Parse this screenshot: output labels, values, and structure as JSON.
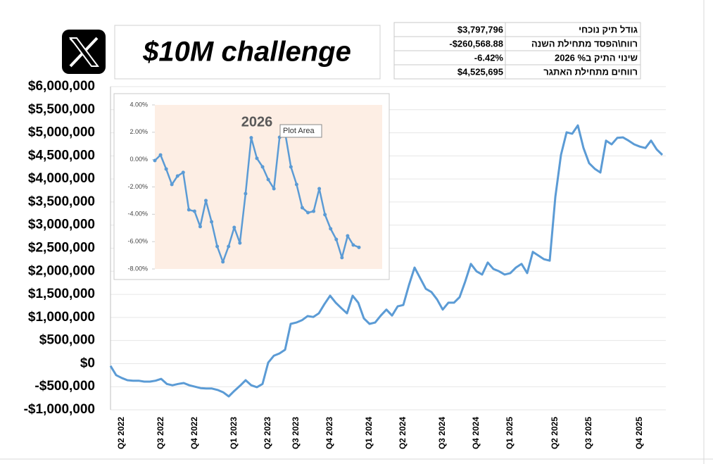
{
  "header": {
    "title": "$10M challenge"
  },
  "table": {
    "rows": [
      [
        "$3,797,796",
        "גודל תיק נוכחי"
      ],
      [
        "-$260,568.88",
        "רווח\\הפסד מתחילת השנה"
      ],
      [
        "-6.42%",
        "שינוי התיק ב% 2026"
      ],
      [
        "$4,525,695",
        "רווחים מתחילת האתגר"
      ]
    ]
  },
  "tooltip": "Plot Area",
  "chart_data": [
    {
      "type": "line",
      "color": "#5b9bd5",
      "grid": true,
      "categories": [
        null,
        null,
        "Q2 2022",
        null,
        null,
        null,
        null,
        null,
        null,
        "Q3 2022",
        null,
        null,
        null,
        null,
        null,
        "Q4 2022",
        null,
        null,
        null,
        null,
        null,
        null,
        "Q1 2023",
        null,
        null,
        null,
        null,
        null,
        "Q2 2023",
        null,
        null,
        null,
        null,
        "Q3 2023",
        null,
        null,
        null,
        null,
        null,
        "Q4 2023",
        null,
        null,
        null,
        null,
        null,
        null,
        "Q1 2024",
        null,
        null,
        null,
        null,
        null,
        "Q2 2024",
        null,
        null,
        null,
        null,
        null,
        null,
        "Q3 2024",
        null,
        null,
        null,
        null,
        null,
        "Q4 2024",
        null,
        null,
        null,
        null,
        null,
        "Q1 2025",
        null,
        null,
        null,
        null,
        null,
        null,
        null,
        "Q2 2025",
        null,
        null,
        null,
        null,
        null,
        "Q3 2025",
        null,
        null,
        null,
        null,
        null,
        null,
        null,
        null,
        "Q4 2025",
        null,
        null,
        null,
        null
      ],
      "values": [
        -50000,
        -250000,
        -310000,
        -360000,
        -370000,
        -370000,
        -390000,
        -390000,
        -370000,
        -330000,
        -440000,
        -470000,
        -440000,
        -420000,
        -470000,
        -500000,
        -530000,
        -540000,
        -540000,
        -570000,
        -620000,
        -710000,
        -590000,
        -480000,
        -360000,
        -470000,
        -510000,
        -440000,
        20000,
        170000,
        220000,
        300000,
        860000,
        890000,
        940000,
        1030000,
        1010000,
        1090000,
        1290000,
        1470000,
        1320000,
        1200000,
        1090000,
        1470000,
        1320000,
        980000,
        860000,
        890000,
        1040000,
        1170000,
        1040000,
        1240000,
        1270000,
        1700000,
        2080000,
        1850000,
        1620000,
        1550000,
        1390000,
        1170000,
        1320000,
        1320000,
        1440000,
        1780000,
        2160000,
        2000000,
        1930000,
        2190000,
        2050000,
        2000000,
        1930000,
        1960000,
        2080000,
        2160000,
        1960000,
        2420000,
        2340000,
        2260000,
        2230000,
        3610000,
        4520000,
        5010000,
        4980000,
        5160000,
        4670000,
        4340000,
        4220000,
        4140000,
        4830000,
        4750000,
        4890000,
        4900000,
        4830000,
        4750000,
        4700000,
        4670000,
        4830000,
        4640000,
        4520000
      ],
      "ylim": [
        -1000000,
        6000000
      ],
      "yticks": [
        {
          "value": -1000000,
          "label": "-$1,000,000"
        },
        {
          "value": -500000,
          "label": "-$500,000"
        },
        {
          "value": 0,
          "label": "$0"
        },
        {
          "value": 500000,
          "label": "$500,000"
        },
        {
          "value": 1000000,
          "label": "$1,000,000"
        },
        {
          "value": 1500000,
          "label": "$1,500,000"
        },
        {
          "value": 2000000,
          "label": "$2,000,000"
        },
        {
          "value": 2500000,
          "label": "$2,500,000"
        },
        {
          "value": 3000000,
          "label": "$3,000,000"
        },
        {
          "value": 3500000,
          "label": "$3,500,000"
        },
        {
          "value": 4000000,
          "label": "$4,000,000"
        },
        {
          "value": 4500000,
          "label": "$4,500,000"
        },
        {
          "value": 5000000,
          "label": "$5,000,000"
        },
        {
          "value": 5500000,
          "label": "$5,500,000"
        },
        {
          "value": 6000000,
          "label": "$6,000,000"
        }
      ]
    },
    {
      "type": "line",
      "title": "2026",
      "color": "#5b9bd5",
      "grid": false,
      "values": [
        -0.07,
        0.34,
        -0.69,
        -1.82,
        -1.2,
        -0.94,
        -3.67,
        -3.78,
        -4.9,
        -3.0,
        -4.55,
        -6.35,
        -7.48,
        -6.35,
        -4.96,
        -6.1,
        -2.49,
        1.6,
        0.09,
        -0.53,
        -1.46,
        -2.13,
        1.63,
        1.89,
        -0.53,
        -1.82,
        -3.52,
        -3.88,
        -3.78,
        -2.13,
        -4.03,
        -5.06,
        -5.84,
        -7.17,
        -5.58,
        -6.25,
        -6.42
      ],
      "ylim": [
        -8,
        4
      ],
      "yticks": [
        {
          "value": -8,
          "label": "-8.00%"
        },
        {
          "value": -6,
          "label": "-6.00%"
        },
        {
          "value": -4,
          "label": "-4.00%"
        },
        {
          "value": -2,
          "label": "-2.00%"
        },
        {
          "value": 0,
          "label": "0.00%"
        },
        {
          "value": 2,
          "label": "2.00%"
        },
        {
          "value": 4,
          "label": "4.00%"
        }
      ]
    }
  ]
}
